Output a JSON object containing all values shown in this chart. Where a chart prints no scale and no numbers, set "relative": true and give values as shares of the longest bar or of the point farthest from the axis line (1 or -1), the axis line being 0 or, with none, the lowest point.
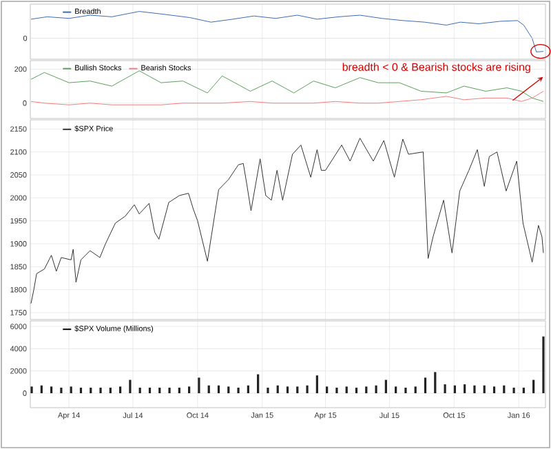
{
  "chart_data": [
    {
      "type": "line",
      "relative": true,
      "grid": "x",
      "legend": "top left",
      "tick_labels": false,
      "xlim": [
        "2014-02-05",
        "2016-02-08"
      ],
      "xticks": [
        {
          "value": "2014-04-01",
          "label": null
        },
        {
          "value": "2014-07-01",
          "label": null
        },
        {
          "value": "2014-10-01",
          "label": null
        },
        {
          "value": "2015-01-01",
          "label": null
        },
        {
          "value": "2015-04-01",
          "label": null
        },
        {
          "value": "2015-07-01",
          "label": null
        },
        {
          "value": "2015-10-01",
          "label": null
        },
        {
          "value": "2016-01-01",
          "label": null
        }
      ],
      "ref_lines": [
        {
          "axis": "y",
          "value": 0,
          "label": "0"
        }
      ],
      "x": [
        "2014-02-06",
        "2014-03-01",
        "2014-04-01",
        "2014-05-01",
        "2014-06-01",
        "2014-07-10",
        "2014-08-15",
        "2014-09-20",
        "2014-10-20",
        "2014-11-20",
        "2014-12-20",
        "2015-01-20",
        "2015-02-20",
        "2015-03-20",
        "2015-04-20",
        "2015-05-20",
        "2015-06-20",
        "2015-07-20",
        "2015-08-20",
        "2015-09-20",
        "2015-10-10",
        "2015-11-05",
        "2015-12-05",
        "2015-12-30",
        "2016-01-08",
        "2016-01-20",
        "2016-01-26",
        "2016-02-05"
      ],
      "series": [
        {
          "name": "Breadth",
          "color": "#3a6ab0",
          "values": [
            0.71,
            0.8,
            0.74,
            0.86,
            0.8,
            1.0,
            0.89,
            0.77,
            0.6,
            0.71,
            0.83,
            0.74,
            0.86,
            0.71,
            0.8,
            0.86,
            0.74,
            0.66,
            0.6,
            0.49,
            0.6,
            0.54,
            0.63,
            0.66,
            0.49,
            0.0,
            -0.51,
            -0.49
          ]
        }
      ]
    },
    {
      "type": "line",
      "grid": true,
      "legend": "top left",
      "tick_labels": "y",
      "xlim": [
        "2014-02-05",
        "2016-02-08"
      ],
      "xticks": [
        {
          "value": "2014-04-01",
          "label": null
        },
        {
          "value": "2014-07-01",
          "label": null
        },
        {
          "value": "2014-10-01",
          "label": null
        },
        {
          "value": "2015-01-01",
          "label": null
        },
        {
          "value": "2015-04-01",
          "label": null
        },
        {
          "value": "2015-07-01",
          "label": null
        },
        {
          "value": "2015-10-01",
          "label": null
        },
        {
          "value": "2016-01-01",
          "label": null
        }
      ],
      "ylim": [
        -90,
        250
      ],
      "yticks": [
        0,
        200
      ],
      "annotations": [
        "breadth < 0 & Bearish stocks are rising"
      ],
      "x": [
        "2014-02-06",
        "2014-02-25",
        "2014-04-01",
        "2014-05-01",
        "2014-06-01",
        "2014-07-10",
        "2014-08-10",
        "2014-09-10",
        "2014-10-15",
        "2014-11-05",
        "2014-12-15",
        "2015-01-15",
        "2015-02-15",
        "2015-03-15",
        "2015-04-15",
        "2015-05-20",
        "2015-06-15",
        "2015-07-15",
        "2015-08-15",
        "2015-09-20",
        "2015-10-15",
        "2015-11-15",
        "2015-12-15",
        "2016-01-05",
        "2016-01-20",
        "2016-02-05"
      ],
      "series": [
        {
          "name": "Bullish Stocks",
          "color": "#5aa05a",
          "values": [
            140,
            180,
            120,
            130,
            100,
            190,
            120,
            130,
            60,
            160,
            70,
            130,
            60,
            130,
            90,
            150,
            120,
            120,
            70,
            60,
            100,
            70,
            90,
            70,
            30,
            10
          ]
        },
        {
          "name": "Bearish Stocks",
          "color": "#f08080",
          "values": [
            10,
            0,
            -10,
            0,
            -10,
            -10,
            -10,
            0,
            0,
            0,
            10,
            0,
            0,
            0,
            10,
            0,
            0,
            10,
            20,
            40,
            20,
            30,
            30,
            10,
            30,
            70
          ]
        }
      ]
    },
    {
      "type": "line",
      "grid": true,
      "legend": "top left",
      "tick_labels": "y",
      "xlim": [
        "2014-02-05",
        "2016-02-08"
      ],
      "xticks": [
        {
          "value": "2014-04-01",
          "label": null
        },
        {
          "value": "2014-07-01",
          "label": null
        },
        {
          "value": "2014-10-01",
          "label": null
        },
        {
          "value": "2015-01-01",
          "label": null
        },
        {
          "value": "2015-04-01",
          "label": null
        },
        {
          "value": "2015-07-01",
          "label": null
        },
        {
          "value": "2015-10-01",
          "label": null
        },
        {
          "value": "2016-01-01",
          "label": null
        }
      ],
      "ylim": [
        1735,
        2170
      ],
      "yticks": [
        1750,
        1800,
        1850,
        1900,
        1950,
        2000,
        2050,
        2100,
        2150
      ],
      "x": [
        "2014-02-06",
        "2014-02-10",
        "2014-02-14",
        "2014-02-25",
        "2014-03-07",
        "2014-03-14",
        "2014-03-21",
        "2014-04-04",
        "2014-04-07",
        "2014-04-11",
        "2014-04-18",
        "2014-05-01",
        "2014-05-15",
        "2014-05-23",
        "2014-06-06",
        "2014-06-20",
        "2014-07-03",
        "2014-07-10",
        "2014-07-24",
        "2014-08-01",
        "2014-08-07",
        "2014-08-21",
        "2014-09-05",
        "2014-09-18",
        "2014-09-25",
        "2014-10-01",
        "2014-10-15",
        "2014-10-31",
        "2014-11-14",
        "2014-11-28",
        "2014-12-05",
        "2014-12-10",
        "2014-12-16",
        "2014-12-29",
        "2015-01-06",
        "2015-01-14",
        "2015-01-22",
        "2015-01-30",
        "2015-02-13",
        "2015-02-25",
        "2015-03-11",
        "2015-03-20",
        "2015-03-26",
        "2015-04-01",
        "2015-04-24",
        "2015-05-06",
        "2015-05-20",
        "2015-06-08",
        "2015-06-23",
        "2015-07-08",
        "2015-07-20",
        "2015-07-28",
        "2015-08-18",
        "2015-08-25",
        "2015-09-01",
        "2015-09-16",
        "2015-09-28",
        "2015-10-09",
        "2015-10-22",
        "2015-11-03",
        "2015-11-13",
        "2015-11-20",
        "2015-12-01",
        "2015-12-14",
        "2015-12-29",
        "2016-01-07",
        "2016-01-20",
        "2016-01-29",
        "2016-02-03",
        "2016-02-05"
      ],
      "series": [
        {
          "name": "$SPX Price",
          "color": "#333333",
          "values": [
            1770,
            1800,
            1835,
            1845,
            1875,
            1840,
            1870,
            1865,
            1888,
            1816,
            1865,
            1885,
            1870,
            1900,
            1945,
            1960,
            1985,
            1965,
            1988,
            1925,
            1910,
            1990,
            2005,
            2010,
            1975,
            1950,
            1862,
            2018,
            2040,
            2072,
            2075,
            2030,
            1972,
            2085,
            2005,
            1995,
            2060,
            1995,
            2095,
            2115,
            2045,
            2105,
            2060,
            2060,
            2115,
            2080,
            2130,
            2080,
            2125,
            2045,
            2128,
            2095,
            2100,
            1868,
            1915,
            1995,
            1880,
            2015,
            2060,
            2105,
            2025,
            2090,
            2100,
            2015,
            2080,
            1945,
            1860,
            1940,
            1915,
            1880
          ]
        }
      ]
    },
    {
      "type": "bar",
      "grid": true,
      "legend": "top left",
      "xlim": [
        "2014-02-05",
        "2016-02-08"
      ],
      "xticks": [
        {
          "value": "2014-04-01",
          "label": "Apr 14"
        },
        {
          "value": "2014-07-01",
          "label": "Jul 14"
        },
        {
          "value": "2014-10-01",
          "label": "Oct 14"
        },
        {
          "value": "2015-01-01",
          "label": "Jan 15"
        },
        {
          "value": "2015-04-01",
          "label": "Apr 15"
        },
        {
          "value": "2015-07-01",
          "label": "Jul 15"
        },
        {
          "value": "2015-10-01",
          "label": "Oct 15"
        },
        {
          "value": "2016-01-01",
          "label": "Jan 16"
        }
      ],
      "ylim": [
        -1300,
        6500
      ],
      "yticks": [
        0,
        2000,
        4000,
        6000
      ],
      "x": [
        "2014-02-07",
        "2014-02-21",
        "2014-03-07",
        "2014-03-21",
        "2014-04-04",
        "2014-04-18",
        "2014-05-02",
        "2014-05-16",
        "2014-05-30",
        "2014-06-13",
        "2014-06-27",
        "2014-07-11",
        "2014-07-25",
        "2014-08-08",
        "2014-08-22",
        "2014-09-05",
        "2014-09-19",
        "2014-10-03",
        "2014-10-17",
        "2014-10-31",
        "2014-11-14",
        "2014-11-28",
        "2014-12-12",
        "2014-12-26",
        "2015-01-09",
        "2015-01-23",
        "2015-02-06",
        "2015-02-20",
        "2015-03-06",
        "2015-03-20",
        "2015-04-03",
        "2015-04-17",
        "2015-05-01",
        "2015-05-15",
        "2015-05-29",
        "2015-06-12",
        "2015-06-26",
        "2015-07-10",
        "2015-07-24",
        "2015-08-07",
        "2015-08-21",
        "2015-09-04",
        "2015-09-18",
        "2015-10-02",
        "2015-10-16",
        "2015-10-30",
        "2015-11-13",
        "2015-11-27",
        "2015-12-11",
        "2015-12-25",
        "2016-01-08",
        "2016-01-22",
        "2016-02-05"
      ],
      "series": [
        {
          "name": "$SPX Volume (Millions)",
          "color": "#222222",
          "values": [
            600,
            700,
            600,
            500,
            600,
            500,
            500,
            500,
            500,
            600,
            1200,
            500,
            500,
            500,
            500,
            500,
            600,
            1400,
            700,
            700,
            600,
            500,
            700,
            1700,
            500,
            700,
            600,
            600,
            700,
            1600,
            600,
            500,
            600,
            500,
            600,
            700,
            1200,
            600,
            500,
            600,
            1400,
            1900,
            800,
            700,
            800,
            700,
            700,
            600,
            700,
            500,
            500,
            1200,
            5100
          ]
        }
      ]
    }
  ]
}
